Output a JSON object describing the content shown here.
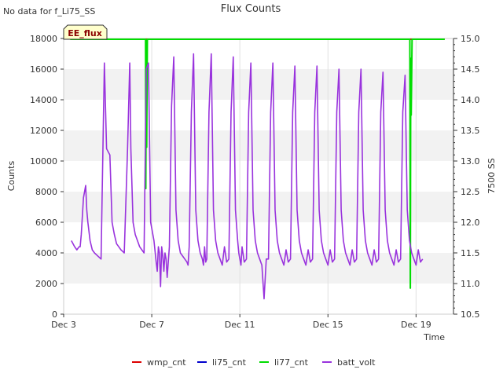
{
  "no_data_note": "No data for f_Li75_SS",
  "badge_label": "EE_flux",
  "chart_data": {
    "type": "line",
    "title": "Flux Counts",
    "xlabel": "Time",
    "ylabel": "Counts",
    "y2label": "7500 SS",
    "xlim": [
      3.0,
      20.7
    ],
    "ylim": [
      0,
      18000
    ],
    "y2lim": [
      10.5,
      15.0
    ],
    "x_ticks": [
      {
        "value": 3,
        "label": "Dec 3"
      },
      {
        "value": 7,
        "label": "Dec 7"
      },
      {
        "value": 11,
        "label": "Dec 11"
      },
      {
        "value": 15,
        "label": "Dec 15"
      },
      {
        "value": 19,
        "label": "Dec 19"
      }
    ],
    "y_ticks": [
      0,
      2000,
      4000,
      6000,
      8000,
      10000,
      12000,
      14000,
      16000,
      18000
    ],
    "y2_ticks": [
      "10.5",
      "11.0",
      "11.5",
      "12.0",
      "12.5",
      "13.0",
      "13.5",
      "14.0",
      "14.5",
      "15.0"
    ],
    "grid_bands": true,
    "legend_position": "bottom",
    "series": [
      {
        "name": "wmp_cnt",
        "color": "#dd0000",
        "axis": "left",
        "x": [
          3.3,
          20.3
        ],
        "values": [
          17950,
          17950
        ]
      },
      {
        "name": "li75_cnt",
        "color": "#0000cc",
        "axis": "left",
        "x": [],
        "values": []
      },
      {
        "name": "li77_cnt",
        "color": "#00dd00",
        "axis": "left",
        "x": [
          3.3,
          6.7,
          6.72,
          6.73,
          6.75,
          6.77,
          6.8,
          6.85,
          18.7,
          18.72,
          18.74,
          18.76,
          18.78,
          18.82,
          18.86,
          20.3
        ],
        "values": [
          17950,
          17950,
          17950,
          8200,
          17900,
          10900,
          17950,
          17950,
          17950,
          17950,
          1700,
          16700,
          13000,
          17950,
          17950,
          17950
        ]
      },
      {
        "name": "batt_volt",
        "color": "#9933dd",
        "axis": "right",
        "x": [
          3.35,
          3.5,
          3.6,
          3.7,
          3.75,
          3.8,
          3.9,
          4.0,
          4.05,
          4.1,
          4.15,
          4.2,
          4.3,
          4.4,
          4.55,
          4.7,
          4.85,
          4.95,
          5.1,
          5.2,
          5.3,
          5.4,
          5.5,
          5.6,
          5.75,
          5.9,
          6.0,
          6.05,
          6.15,
          6.25,
          6.35,
          6.45,
          6.55,
          6.65,
          6.75,
          6.85,
          6.95,
          7.1,
          7.2,
          7.25,
          7.3,
          7.35,
          7.4,
          7.45,
          7.5,
          7.55,
          7.6,
          7.65,
          7.7,
          7.8,
          7.9,
          8.0,
          8.1,
          8.2,
          8.3,
          8.4,
          8.5,
          8.6,
          8.65,
          8.7,
          8.8,
          8.9,
          9.0,
          9.1,
          9.2,
          9.3,
          9.35,
          9.4,
          9.45,
          9.5,
          9.6,
          9.7,
          9.8,
          9.9,
          10.0,
          10.1,
          10.2,
          10.3,
          10.4,
          10.5,
          10.6,
          10.7,
          10.8,
          10.9,
          10.95,
          11.0,
          11.05,
          11.1,
          11.2,
          11.3,
          11.4,
          11.5,
          11.6,
          11.7,
          11.8,
          11.9,
          12.0,
          12.1,
          12.2,
          12.3,
          12.4,
          12.5,
          12.6,
          12.7,
          12.8,
          12.9,
          13.0,
          13.1,
          13.2,
          13.3,
          13.4,
          13.5,
          13.6,
          13.7,
          13.8,
          13.9,
          14.0,
          14.1,
          14.2,
          14.3,
          14.4,
          14.5,
          14.6,
          14.7,
          14.8,
          14.9,
          15.0,
          15.1,
          15.2,
          15.3,
          15.4,
          15.5,
          15.6,
          15.7,
          15.8,
          15.9,
          16.0,
          16.1,
          16.2,
          16.3,
          16.4,
          16.5,
          16.6,
          16.7,
          16.8,
          16.9,
          17.0,
          17.1,
          17.2,
          17.3,
          17.4,
          17.5,
          17.6,
          17.7,
          17.8,
          17.9,
          18.0,
          18.1,
          18.2,
          18.3,
          18.4,
          18.5,
          18.6,
          18.7,
          18.8,
          18.9,
          19.0,
          19.1,
          19.2,
          19.3
        ],
        "values": [
          11.7,
          11.6,
          11.55,
          11.6,
          11.6,
          11.8,
          12.4,
          12.6,
          12.2,
          12.0,
          11.85,
          11.7,
          11.55,
          11.5,
          11.45,
          11.4,
          14.6,
          13.2,
          13.1,
          12.0,
          11.8,
          11.65,
          11.6,
          11.55,
          11.5,
          13.2,
          14.6,
          13.2,
          12.0,
          11.8,
          11.7,
          11.6,
          11.55,
          11.5,
          14.5,
          14.6,
          12.0,
          11.7,
          11.35,
          11.2,
          11.6,
          11.5,
          10.95,
          11.6,
          11.45,
          11.2,
          11.5,
          11.4,
          11.1,
          11.6,
          13.9,
          14.7,
          12.2,
          11.7,
          11.5,
          11.45,
          11.4,
          11.35,
          11.3,
          11.6,
          13.8,
          14.75,
          12.2,
          11.7,
          11.5,
          11.4,
          11.3,
          11.6,
          11.35,
          11.4,
          13.8,
          14.75,
          12.2,
          11.7,
          11.5,
          11.4,
          11.3,
          11.6,
          11.35,
          11.4,
          13.8,
          14.7,
          12.2,
          11.7,
          11.5,
          11.4,
          11.3,
          11.6,
          11.35,
          11.4,
          13.8,
          14.6,
          12.2,
          11.7,
          11.5,
          11.4,
          11.3,
          10.75,
          11.4,
          11.4,
          13.8,
          14.6,
          12.2,
          11.7,
          11.5,
          11.4,
          11.3,
          11.55,
          11.35,
          11.4,
          13.8,
          14.55,
          12.2,
          11.7,
          11.5,
          11.4,
          11.3,
          11.55,
          11.35,
          11.4,
          13.8,
          14.55,
          12.2,
          11.7,
          11.5,
          11.4,
          11.3,
          11.55,
          11.35,
          11.4,
          13.8,
          14.5,
          12.2,
          11.7,
          11.5,
          11.4,
          11.3,
          11.55,
          11.35,
          11.4,
          13.8,
          14.5,
          12.2,
          11.7,
          11.5,
          11.4,
          11.3,
          11.55,
          11.35,
          11.4,
          13.8,
          14.45,
          12.2,
          11.7,
          11.5,
          11.4,
          11.3,
          11.55,
          11.35,
          11.4,
          13.8,
          14.4,
          12.2,
          11.7,
          11.5,
          11.4,
          11.3,
          11.55,
          11.35,
          11.4
        ]
      }
    ]
  }
}
